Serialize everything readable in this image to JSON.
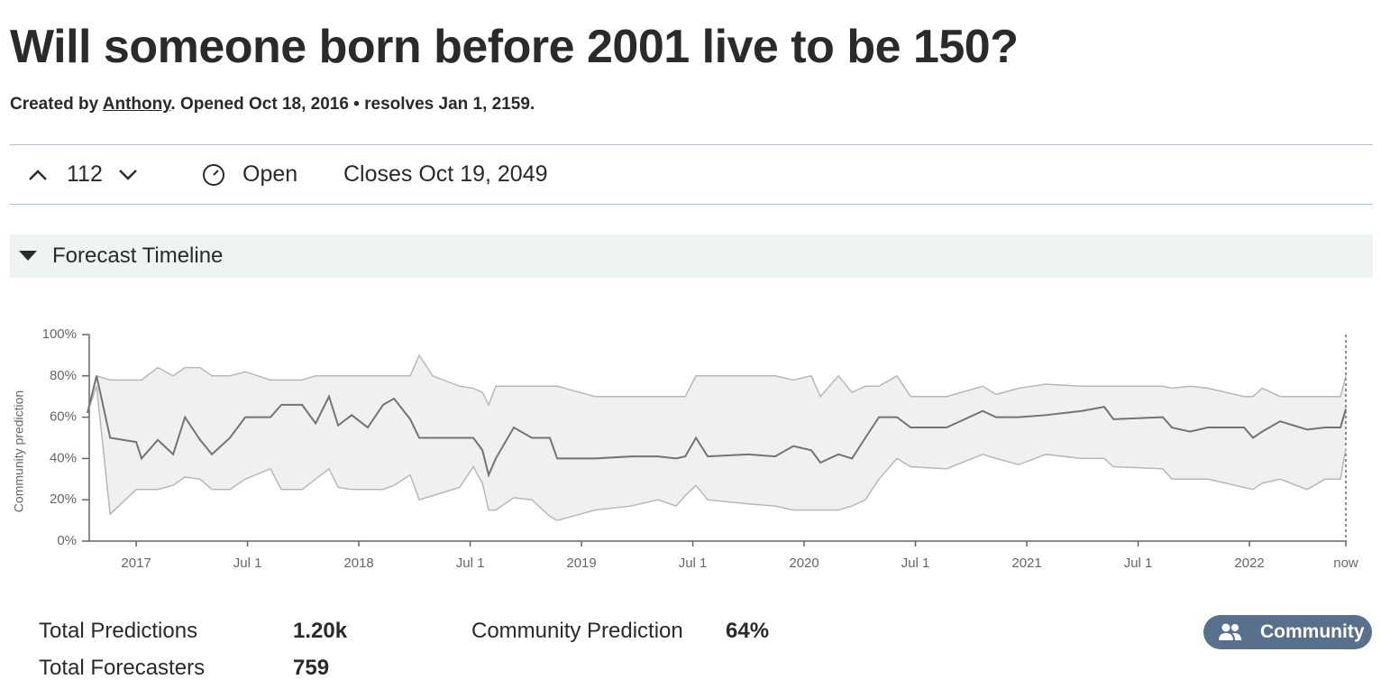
{
  "header": {
    "title": "Will someone born before 2001 live to be 150?",
    "created_by": "Created by",
    "author": "Anthony",
    "meta": ". Opened Oct 18, 2016 • resolves Jan 1, 2159."
  },
  "toolbar": {
    "votes": "112",
    "status": "Open",
    "closes": "Closes Oct 19, 2049"
  },
  "section": {
    "title": "Forecast Timeline"
  },
  "chart_data": {
    "type": "line",
    "ylabel": "Community prediction",
    "x": [
      2016.781,
      2016.822,
      2016.883,
      2017.0,
      2017.024,
      2017.097,
      2017.166,
      2017.219,
      2017.287,
      2017.34,
      2017.421,
      2017.49,
      2017.603,
      2017.652,
      2017.745,
      2017.806,
      2017.866,
      2017.907,
      2017.968,
      2018.04,
      2018.109,
      2018.158,
      2018.231,
      2018.271,
      2018.332,
      2018.453,
      2018.514,
      2018.555,
      2018.583,
      2018.615,
      2018.696,
      2018.777,
      2018.858,
      2018.891,
      2019.061,
      2019.223,
      2019.344,
      2019.425,
      2019.466,
      2019.514,
      2019.567,
      2019.749,
      2019.87,
      2019.951,
      2020.032,
      2020.073,
      2020.154,
      2020.215,
      2020.275,
      2020.336,
      2020.417,
      2020.478,
      2020.64,
      2020.802,
      2020.862,
      2020.964,
      2021.085,
      2021.247,
      2021.348,
      2021.389,
      2021.611,
      2021.652,
      2021.733,
      2021.814,
      2021.976,
      2022.016,
      2022.057,
      2022.138,
      2022.259,
      2022.34,
      2022.409,
      2022.433
    ],
    "series": [
      {
        "color": "#737373",
        "values": [
          62,
          80,
          50,
          48,
          40,
          49,
          42,
          60,
          49,
          42,
          50,
          60,
          60,
          66,
          66,
          57,
          70,
          56,
          61,
          55,
          66,
          69,
          59,
          50,
          50,
          50,
          50,
          44,
          32,
          40,
          55,
          50,
          50,
          40,
          40,
          41,
          41,
          40,
          41,
          50,
          41,
          42,
          41,
          46,
          44,
          38,
          42,
          40,
          50,
          60,
          60,
          55,
          55,
          63,
          60,
          60,
          61,
          63,
          65,
          59,
          60,
          55,
          53,
          55,
          55,
          50,
          53,
          58,
          54,
          55,
          55,
          64
        ]
      },
      {
        "color": "#b8b8b8",
        "values": [
          62,
          75,
          13,
          25,
          25,
          25,
          27,
          31,
          30,
          25,
          25,
          30,
          35,
          25,
          25,
          30,
          35,
          26,
          25,
          25,
          25,
          27,
          32,
          20,
          22,
          26,
          36,
          28,
          15,
          15,
          21,
          20,
          12,
          10,
          15,
          17,
          20,
          17,
          22,
          27,
          20,
          18,
          17,
          15,
          15,
          15,
          15,
          17,
          20,
          30,
          40,
          36,
          35,
          42,
          40,
          37,
          42,
          40,
          40,
          36,
          35,
          30,
          30,
          30,
          26,
          25,
          28,
          30,
          25,
          30,
          30,
          45
        ]
      },
      {
        "color": "#b8b8b8",
        "values": [
          62,
          80,
          78,
          78,
          78,
          84,
          80,
          84,
          84,
          80,
          80,
          82,
          78,
          78,
          78,
          80,
          80,
          80,
          80,
          80,
          80,
          80,
          80,
          90,
          80,
          75,
          74,
          72,
          66,
          75,
          75,
          75,
          75,
          75,
          70,
          70,
          70,
          70,
          70,
          80,
          80,
          80,
          80,
          78,
          80,
          70,
          80,
          72,
          75,
          75,
          80,
          70,
          70,
          75,
          71,
          74,
          76,
          75,
          75,
          75,
          75,
          74,
          75,
          74,
          70,
          70,
          74,
          70,
          70,
          70,
          70,
          80
        ]
      }
    ],
    "xlim": [
      2016.781,
      2022.433
    ],
    "xticks": [
      {
        "value": 2017,
        "label": "2017"
      },
      {
        "value": 2017.5,
        "label": "Jul 1"
      },
      {
        "value": 2018,
        "label": "2018"
      },
      {
        "value": 2018.5,
        "label": "Jul 1"
      },
      {
        "value": 2019,
        "label": "2019"
      },
      {
        "value": 2019.5,
        "label": "Jul 1"
      },
      {
        "value": 2020,
        "label": "2020"
      },
      {
        "value": 2020.5,
        "label": "Jul 1"
      },
      {
        "value": 2021,
        "label": "2021"
      },
      {
        "value": 2021.5,
        "label": "Jul 1"
      },
      {
        "value": 2022,
        "label": "2022"
      },
      {
        "value": 2022.433,
        "label": "now"
      }
    ],
    "ylim": [
      0,
      100
    ],
    "yticks": [
      {
        "value": 0,
        "label": "0%"
      },
      {
        "value": 20,
        "label": "20%"
      },
      {
        "value": 40,
        "label": "40%"
      },
      {
        "value": 60,
        "label": "60%"
      },
      {
        "value": 80,
        "label": "80%"
      },
      {
        "value": 100,
        "label": "100%"
      }
    ],
    "band_color": "#f0f0f0"
  },
  "stats": {
    "total_predictions_label": "Total Predictions",
    "total_predictions": "1.20k",
    "total_forecasters_label": "Total Forecasters",
    "total_forecasters": "759",
    "community_prediction_label": "Community Prediction",
    "community_prediction": "64%",
    "button": "Community"
  }
}
